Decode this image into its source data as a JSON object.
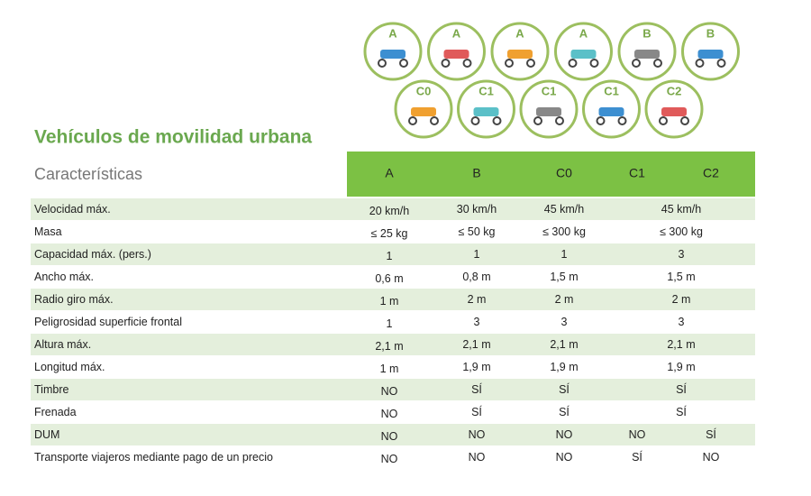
{
  "icons": {
    "row1": [
      "A",
      "A",
      "A",
      "A",
      "B",
      "B"
    ],
    "row2": [
      "C0",
      "C1",
      "C1",
      "C1",
      "C2"
    ]
  },
  "title": "Vehículos de movilidad urbana",
  "table": {
    "header": [
      "Características",
      "A",
      "B",
      "C0",
      "C1",
      "C2"
    ],
    "rows": [
      [
        "Velocidad máx.",
        "20 km/h",
        "30 km/h",
        "45 km/h",
        "45 km/h"
      ],
      [
        "Masa",
        "≤ 25 kg",
        "≤ 50 kg",
        "≤ 300 kg",
        "≤ 300 kg"
      ],
      [
        "Capacidad máx. (pers.)",
        "1",
        "1",
        "1",
        "3"
      ],
      [
        "Ancho máx.",
        "0,6 m",
        "0,8 m",
        "1,5 m",
        "1,5 m"
      ],
      [
        "Radio giro máx.",
        "1 m",
        "2 m",
        "2 m",
        "2 m"
      ],
      [
        "Peligrosidad superficie frontal",
        "1",
        "3",
        "3",
        "3"
      ],
      [
        "Altura máx.",
        "2,1 m",
        "2,1 m",
        "2,1 m",
        "2,1 m"
      ],
      [
        "Longitud máx.",
        "1 m",
        "1,9 m",
        "1,9 m",
        "1,9 m"
      ],
      [
        "Timbre",
        "NO",
        "SÍ",
        "SÍ",
        "SÍ"
      ],
      [
        "Frenada",
        "NO",
        "SÍ",
        "SÍ",
        "SÍ"
      ],
      [
        "DUM",
        "NO",
        "NO",
        "NO",
        "NO",
        "SÍ"
      ],
      [
        "Transporte viajeros mediante pago de un precio",
        "NO",
        "NO",
        "NO",
        "SÍ",
        "NO"
      ]
    ]
  }
}
